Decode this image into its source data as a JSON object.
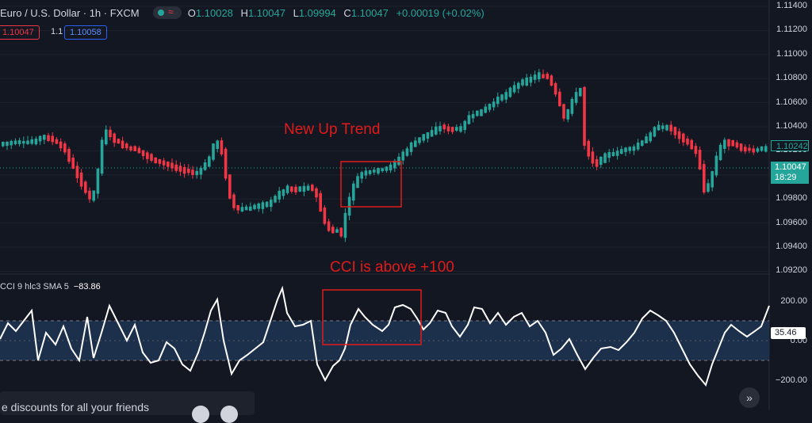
{
  "header": {
    "symbol": "Euro / U.S. Dollar · 1h · FXCM",
    "open_k": "O",
    "open": "1.10028",
    "high_k": "H",
    "high": "1.10047",
    "low_k": "L",
    "low": "1.09994",
    "close_k": "C",
    "close": "1.10047",
    "change": "+0.00019 (+0.02%)"
  },
  "trade": {
    "sell_price": "1.10047",
    "spread": "1.1",
    "buy_price": "1.10058"
  },
  "price_axis": {
    "labels": [
      "1.11400",
      "1.11200",
      "1.11000",
      "1.10800",
      "1.10600",
      "1.10400",
      "1.10200",
      "1.10000",
      "1.09800",
      "1.09600",
      "1.09400",
      "1.09200"
    ]
  },
  "current_price": {
    "price": "1.10047",
    "countdown": "18:29",
    "prev_close_label": "1.10242"
  },
  "annotations": {
    "up_trend": "New Up Trend",
    "cci_note": "CCI is above +100"
  },
  "cci": {
    "title": "CCI 9 hlc3 SMA 5",
    "value": "−83.86",
    "current_tag": "35.46",
    "axis_labels": [
      "200.00",
      "0.00",
      "−200.00"
    ]
  },
  "toast": {
    "title": "...",
    "text": "e discounts for all your friends"
  },
  "colors": {
    "bg": "#131722",
    "up": "#26a69a",
    "down": "#f23645",
    "band": "#1f3554",
    "annot": "#e01b1b"
  },
  "icons": {
    "scroll_right": "double-chevron-right-icon",
    "status_dot": "market-open-icon",
    "wave": "wave-icon"
  }
}
